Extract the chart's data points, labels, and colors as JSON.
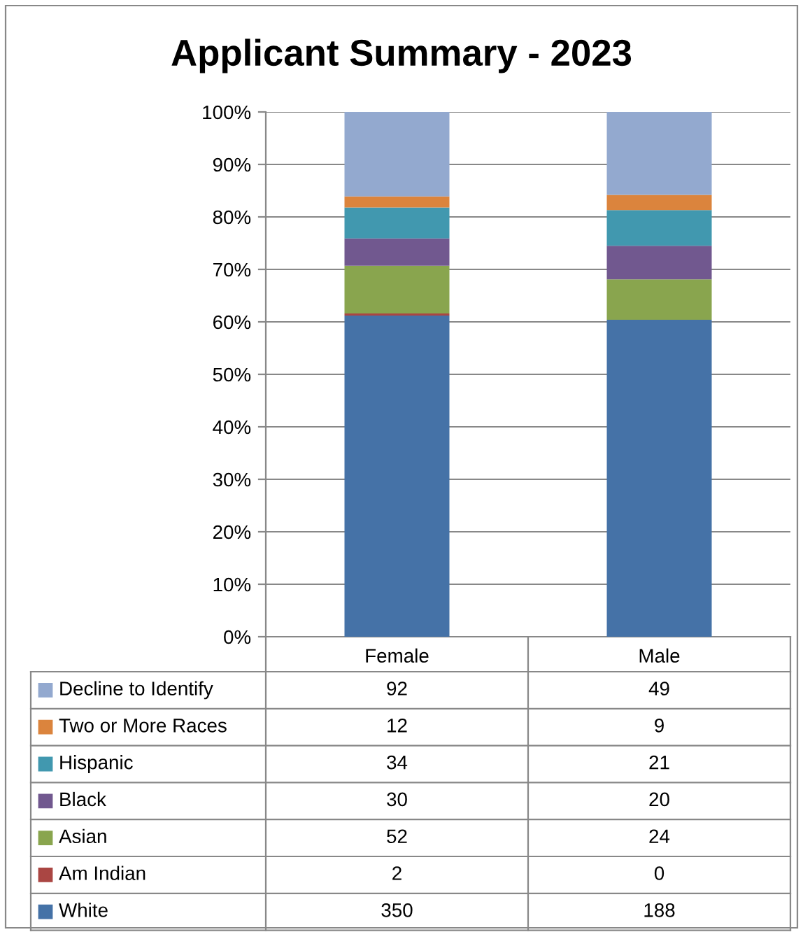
{
  "chart_data": [
    {
      "type": "bar",
      "stacked": true,
      "title": "Applicant Summary - 2023",
      "categories": [
        "Female",
        "Male"
      ],
      "ylim": [
        0,
        100
      ],
      "yticks": [
        {
          "value": 0,
          "label": "0%"
        },
        {
          "value": 10,
          "label": "10%"
        },
        {
          "value": 20,
          "label": "20%"
        },
        {
          "value": 30,
          "label": "30%"
        },
        {
          "value": 40,
          "label": "40%"
        },
        {
          "value": 50,
          "label": "50%"
        },
        {
          "value": 60,
          "label": "60%"
        },
        {
          "value": 70,
          "label": "70%"
        },
        {
          "value": 80,
          "label": "80%"
        },
        {
          "value": 90,
          "label": "90%"
        },
        {
          "value": 100,
          "label": "100%"
        }
      ],
      "grid": "y",
      "legend": "bottom left",
      "series": [
        {
          "name": "White",
          "color": "#4572a7",
          "values": [
            61.2,
            60.4
          ]
        },
        {
          "name": "Am Indian",
          "color": "#aa4643",
          "values": [
            0.4,
            0
          ]
        },
        {
          "name": "Asian",
          "color": "#89a54e",
          "values": [
            9.1,
            7.7
          ]
        },
        {
          "name": "Black",
          "color": "#71588f",
          "values": [
            5.2,
            6.4
          ]
        },
        {
          "name": "Hispanic",
          "color": "#4198af",
          "values": [
            5.9,
            6.8
          ]
        },
        {
          "name": "Two or More Races",
          "color": "#db843d",
          "values": [
            2.1,
            2.9
          ]
        },
        {
          "name": "Decline to Identify",
          "color": "#93a9cf",
          "values": [
            16.1,
            15.8
          ]
        }
      ]
    },
    {
      "type": "other",
      "annotations": [
        "92",
        "49",
        "12",
        "9",
        "34",
        "21",
        "30",
        "20",
        "52",
        "24",
        "2",
        "0",
        "350",
        "188"
      ]
    }
  ]
}
